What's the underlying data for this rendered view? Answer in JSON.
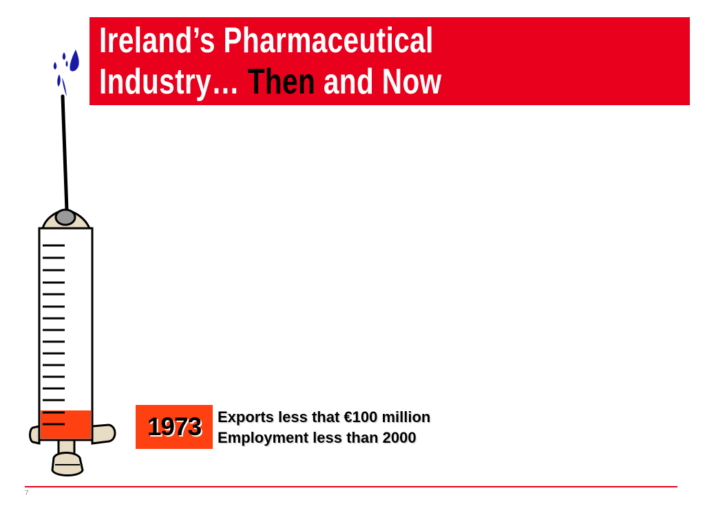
{
  "title": {
    "line1": "Ireland’s Pharmaceutical",
    "line2_prefix": "Industry… ",
    "line2_highlight": "Then",
    "line2_suffix": " and Now"
  },
  "year_badge": "1973",
  "facts": [
    "Exports less that €100 million",
    "Employment less than 2000"
  ],
  "syringe": {
    "icon": "syringe-icon",
    "fill_level": 0.12
  },
  "footer": {
    "page_number": "7"
  },
  "colors": {
    "accent_red": "#e8001c",
    "year_box": "#ff4010",
    "drop_blue": "#1a1aa6"
  }
}
